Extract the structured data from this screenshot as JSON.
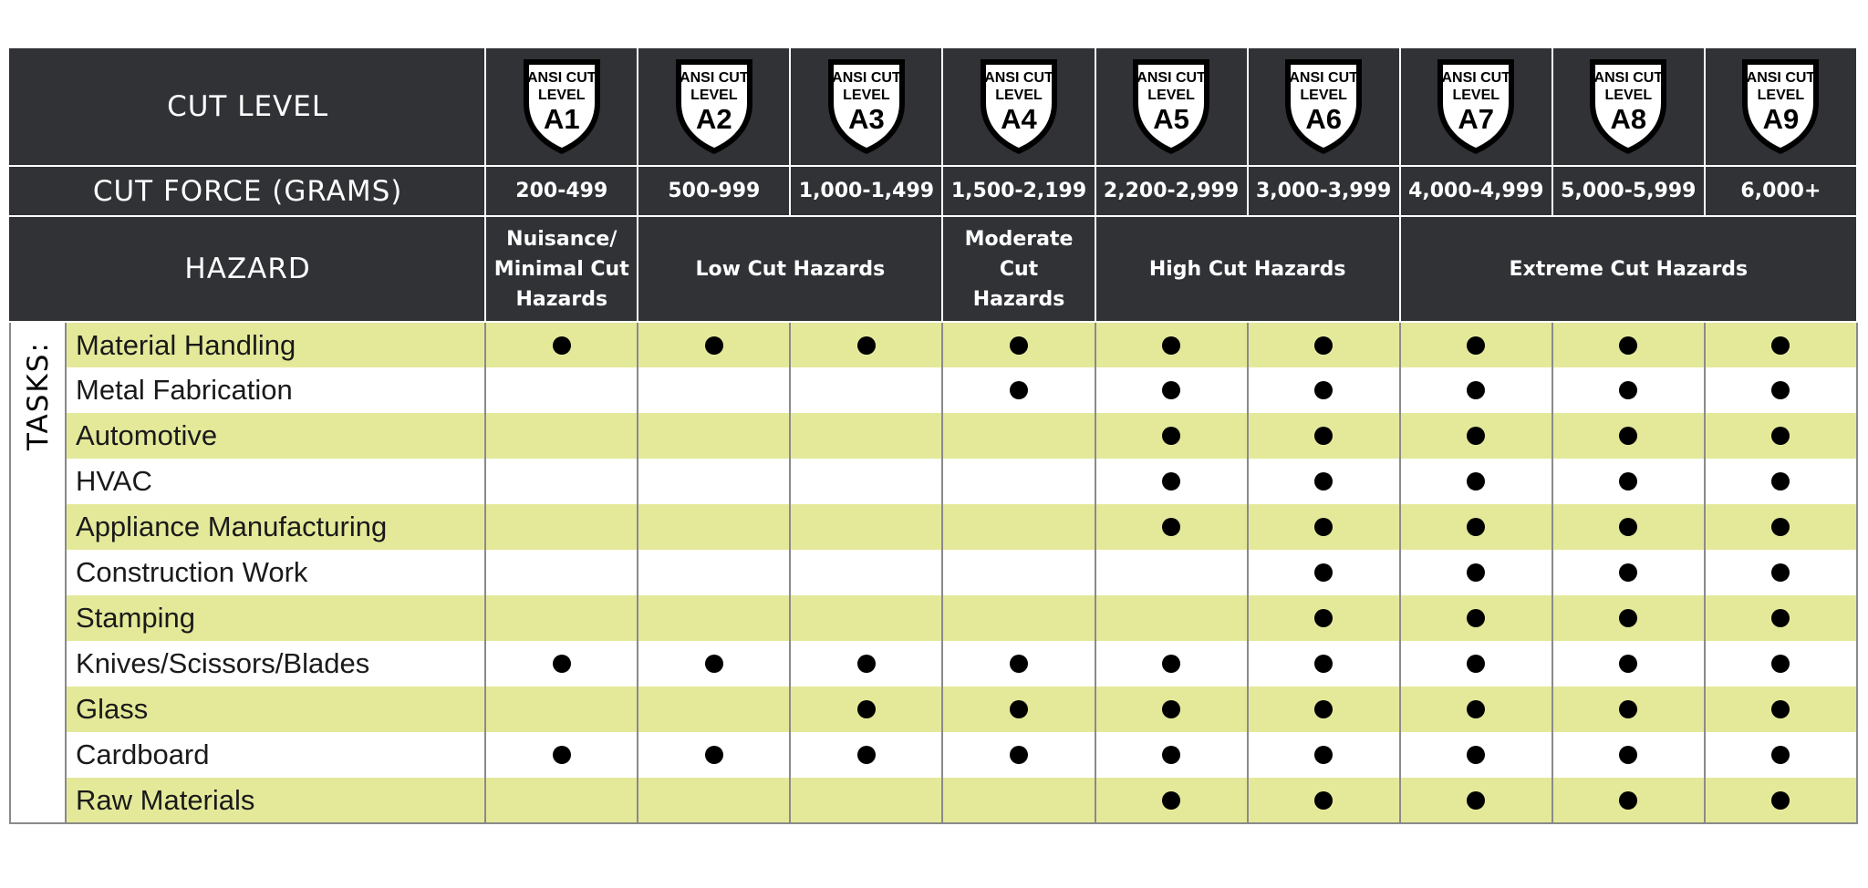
{
  "header": {
    "cut_level_label": "CUT LEVEL",
    "cut_force_label": "CUT FORCE (GRAMS)",
    "hazard_label": "HAZARD"
  },
  "levels": [
    {
      "line1": "ANSI CUT",
      "line2": "LEVEL",
      "code": "A1",
      "force": "200-499"
    },
    {
      "line1": "ANSI CUT",
      "line2": "LEVEL",
      "code": "A2",
      "force": "500-999"
    },
    {
      "line1": "ANSI CUT",
      "line2": "LEVEL",
      "code": "A3",
      "force": "1,000-1,499"
    },
    {
      "line1": "ANSI CUT",
      "line2": "LEVEL",
      "code": "A4",
      "force": "1,500-2,199"
    },
    {
      "line1": "ANSI CUT",
      "line2": "LEVEL",
      "code": "A5",
      "force": "2,200-2,999"
    },
    {
      "line1": "ANSI CUT",
      "line2": "LEVEL",
      "code": "A6",
      "force": "3,000-3,999"
    },
    {
      "line1": "ANSI CUT",
      "line2": "LEVEL",
      "code": "A7",
      "force": "4,000-4,999"
    },
    {
      "line1": "ANSI CUT",
      "line2": "LEVEL",
      "code": "A8",
      "force": "5,000-5,999"
    },
    {
      "line1": "ANSI CUT",
      "line2": "LEVEL",
      "code": "A9",
      "force": "6,000+"
    }
  ],
  "hazards": [
    {
      "lines": [
        "Nuisance/",
        "Minimal Cut",
        "Hazards"
      ]
    },
    {
      "lines": [
        "Low Cut Hazards"
      ]
    },
    {
      "lines": [
        "Moderate",
        "Cut",
        "Hazards"
      ]
    },
    {
      "lines": [
        "High Cut Hazards"
      ]
    },
    {
      "lines": [
        "Extreme Cut Hazards"
      ]
    }
  ],
  "tasks_label": "TASKS:",
  "tasks": [
    {
      "name": "Material Handling",
      "marks": [
        1,
        1,
        1,
        1,
        1,
        1,
        1,
        1,
        1
      ]
    },
    {
      "name": "Metal Fabrication",
      "marks": [
        0,
        0,
        0,
        1,
        1,
        1,
        1,
        1,
        1
      ]
    },
    {
      "name": "Automotive",
      "marks": [
        0,
        0,
        0,
        0,
        1,
        1,
        1,
        1,
        1
      ]
    },
    {
      "name": "HVAC",
      "marks": [
        0,
        0,
        0,
        0,
        1,
        1,
        1,
        1,
        1
      ]
    },
    {
      "name": "Appliance Manufacturing",
      "marks": [
        0,
        0,
        0,
        0,
        1,
        1,
        1,
        1,
        1
      ]
    },
    {
      "name": "Construction Work",
      "marks": [
        0,
        0,
        0,
        0,
        0,
        1,
        1,
        1,
        1
      ]
    },
    {
      "name": "Stamping",
      "marks": [
        0,
        0,
        0,
        0,
        0,
        1,
        1,
        1,
        1
      ]
    },
    {
      "name": "Knives/Scissors/Blades",
      "marks": [
        1,
        1,
        1,
        1,
        1,
        1,
        1,
        1,
        1
      ]
    },
    {
      "name": "Glass",
      "marks": [
        0,
        0,
        1,
        1,
        1,
        1,
        1,
        1,
        1
      ]
    },
    {
      "name": "Cardboard",
      "marks": [
        1,
        1,
        1,
        1,
        1,
        1,
        1,
        1,
        1
      ]
    },
    {
      "name": "Raw Materials",
      "marks": [
        0,
        0,
        0,
        0,
        1,
        1,
        1,
        1,
        1
      ]
    }
  ],
  "colors": {
    "header_bg": "#303236",
    "stripe": "#e4e99a",
    "dot": "#000000"
  }
}
